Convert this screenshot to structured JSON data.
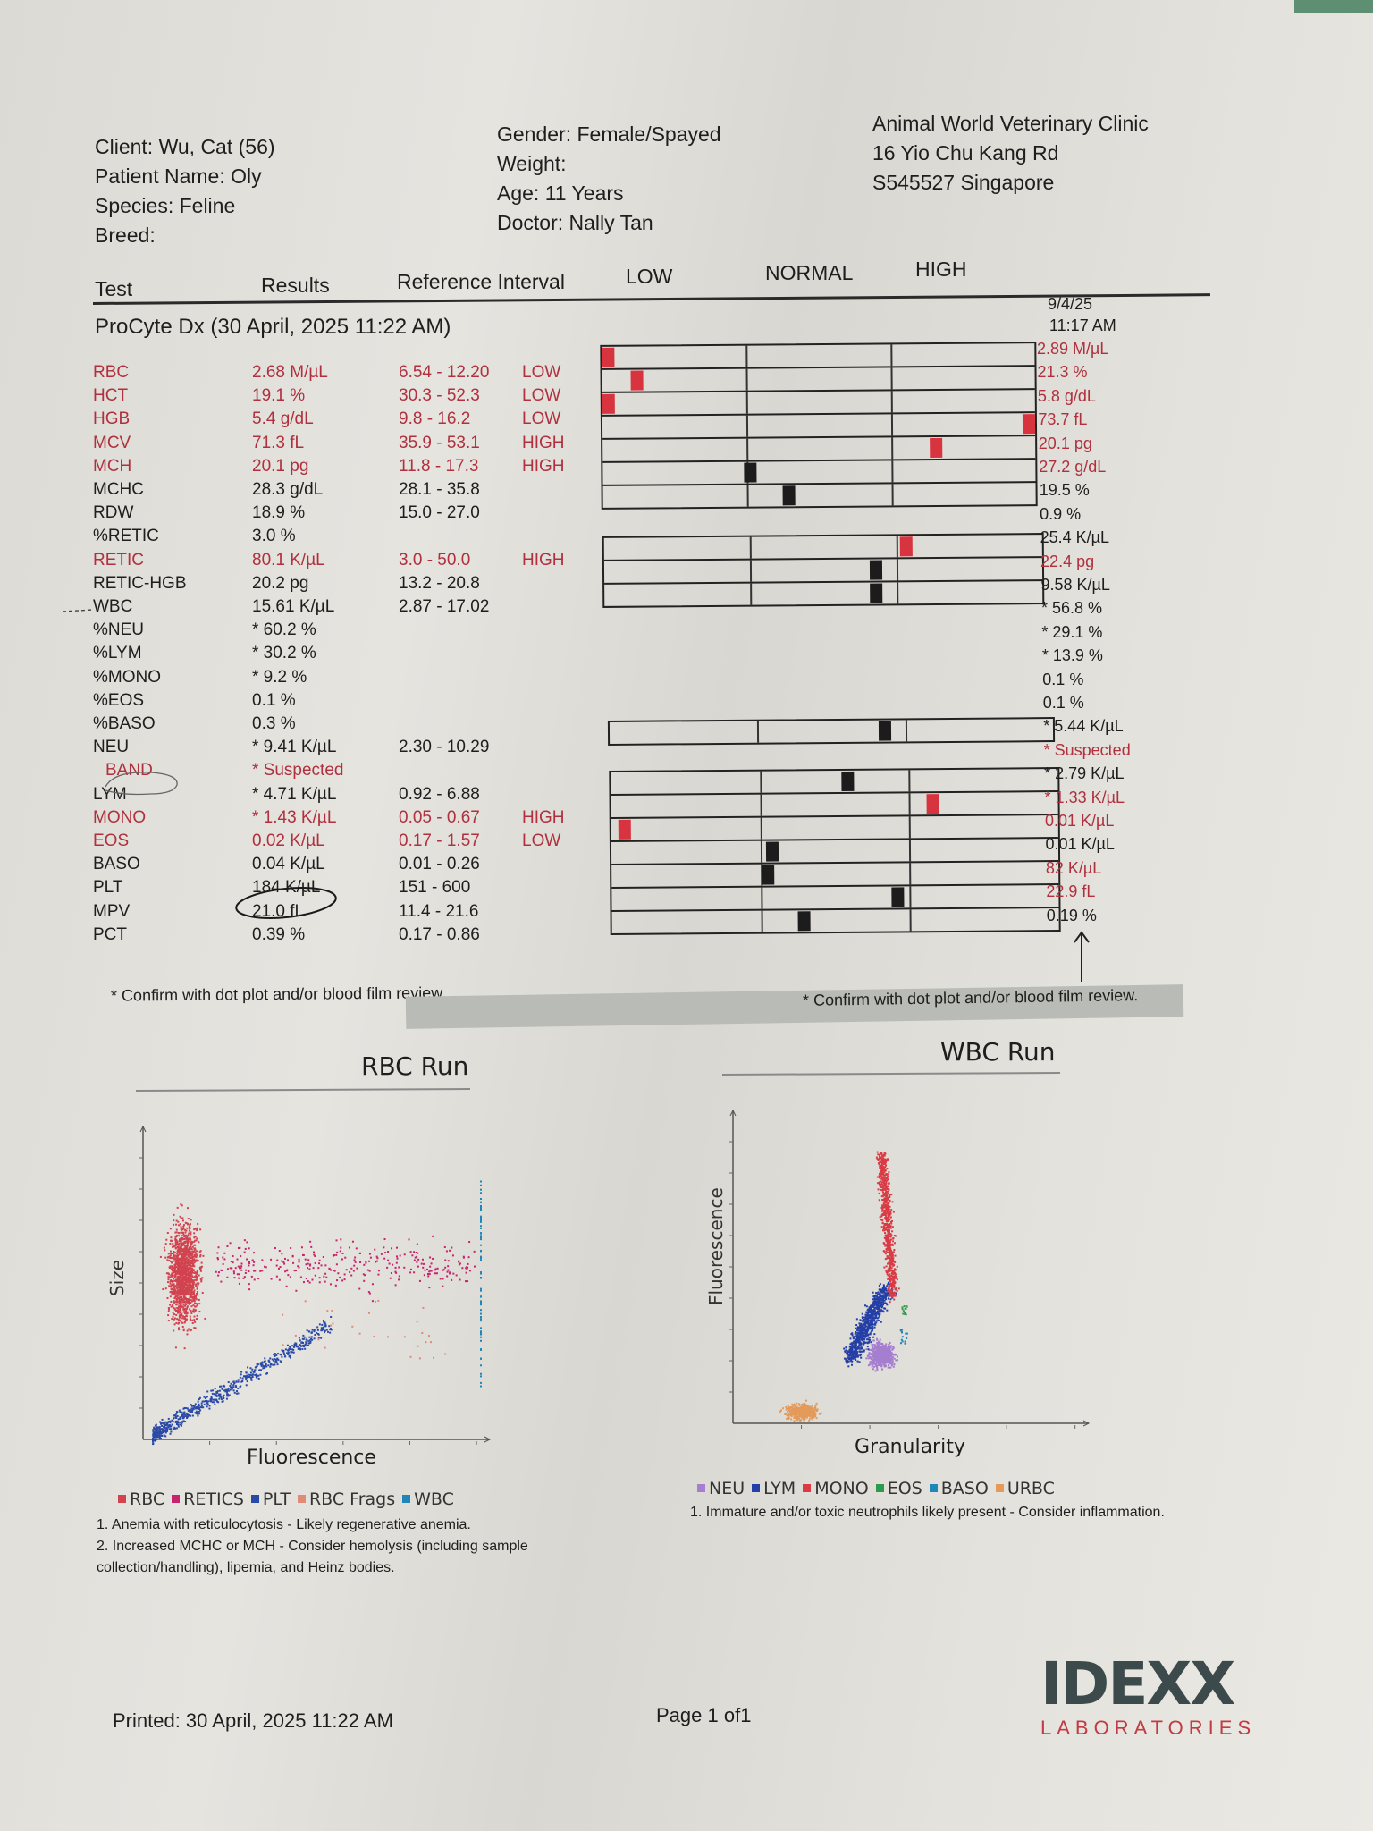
{
  "header": {
    "client": "Client: Wu, Cat (56)",
    "patient": "Patient Name: Oly",
    "species": "Species: Feline",
    "breed": "Breed:",
    "gender": "Gender: Female/Spayed",
    "weight": "Weight:",
    "age": "Age: 11 Years",
    "doctor": "Doctor: Nally Tan",
    "clinic_name": "Animal World Veterinary Clinic",
    "clinic_address1": "16 Yio Chu Kang Rd",
    "clinic_address2": "S545527 Singapore"
  },
  "columns": {
    "test": "Test",
    "results": "Results",
    "reference": "Reference Interval",
    "low": "LOW",
    "normal": "NORMAL",
    "high": "HIGH"
  },
  "section_title": "ProCyte Dx (30 April, 2025 11:22 AM)",
  "previous_run": {
    "date": "9/4/25",
    "time": "11:17 AM"
  },
  "tests": [
    {
      "test": "RBC",
      "result": "2.68 M/µL",
      "reference": "6.54 - 12.20",
      "flag": "LOW",
      "abnormal": true,
      "gauge_position": 0.01,
      "previous": "2.89 M/µL",
      "previous_abnormal": true
    },
    {
      "test": "HCT",
      "result": "19.1 %",
      "reference": "30.3 - 52.3",
      "flag": "LOW",
      "abnormal": true,
      "gauge_position": 0.08,
      "previous": "21.3 %",
      "previous_abnormal": true
    },
    {
      "test": "HGB",
      "result": "5.4 g/dL",
      "reference": "9.8 - 16.2",
      "flag": "LOW",
      "abnormal": true,
      "gauge_position": 0.02,
      "previous": "5.8 g/dL",
      "previous_abnormal": true
    },
    {
      "test": "MCV",
      "result": "71.3 fL",
      "reference": "35.9 - 53.1",
      "flag": "HIGH",
      "abnormal": true,
      "gauge_position": 0.99,
      "previous": "73.7 fL",
      "previous_abnormal": true
    },
    {
      "test": "MCH",
      "result": "20.1 pg",
      "reference": "11.8 - 17.3",
      "flag": "HIGH",
      "abnormal": true,
      "gauge_position": 0.77,
      "previous": "20.1 pg",
      "previous_abnormal": true
    },
    {
      "test": "MCHC",
      "result": "28.3 g/dL",
      "reference": "28.1 - 35.8",
      "flag": "",
      "abnormal": false,
      "gauge_position": 0.34,
      "previous": "27.2 g/dL",
      "previous_abnormal": true
    },
    {
      "test": "RDW",
      "result": "18.9 %",
      "reference": "15.0 - 27.0",
      "flag": "",
      "abnormal": false,
      "gauge_position": 0.43,
      "previous": "19.5 %",
      "previous_abnormal": false
    },
    {
      "test": "%RETIC",
      "result": "3.0 %",
      "reference": "",
      "flag": "",
      "abnormal": false,
      "gauge_position": null,
      "previous": "0.9 %",
      "previous_abnormal": false
    },
    {
      "test": "RETIC",
      "result": "80.1 K/µL",
      "reference": "3.0 - 50.0",
      "flag": "HIGH",
      "abnormal": true,
      "gauge_position": 0.69,
      "previous": "25.4 K/µL",
      "previous_abnormal": false
    },
    {
      "test": "RETIC-HGB",
      "result": "20.2 pg",
      "reference": "13.2 - 20.8",
      "flag": "",
      "abnormal": false,
      "gauge_position": 0.62,
      "previous": "22.4 pg",
      "previous_abnormal": true
    },
    {
      "test": "WBC",
      "result": "15.61 K/µL",
      "reference": "2.87 - 17.02",
      "flag": "",
      "abnormal": false,
      "gauge_position": 0.62,
      "previous": "9.58 K/µL",
      "previous_abnormal": false
    },
    {
      "test": "%NEU",
      "result": "* 60.2 %",
      "reference": "",
      "flag": "",
      "abnormal": false,
      "gauge_position": null,
      "previous": "* 56.8 %",
      "previous_abnormal": false
    },
    {
      "test": "%LYM",
      "result": "* 30.2 %",
      "reference": "",
      "flag": "",
      "abnormal": false,
      "gauge_position": null,
      "previous": "* 29.1 %",
      "previous_abnormal": false
    },
    {
      "test": "%MONO",
      "result": "* 9.2 %",
      "reference": "",
      "flag": "",
      "abnormal": false,
      "gauge_position": null,
      "previous": "* 13.9 %",
      "previous_abnormal": false
    },
    {
      "test": "%EOS",
      "result": "0.1 %",
      "reference": "",
      "flag": "",
      "abnormal": false,
      "gauge_position": null,
      "previous": "0.1 %",
      "previous_abnormal": false
    },
    {
      "test": "%BASO",
      "result": "0.3 %",
      "reference": "",
      "flag": "",
      "abnormal": false,
      "gauge_position": null,
      "previous": "0.1 %",
      "previous_abnormal": false
    },
    {
      "test": "NEU",
      "result": "* 9.41 K/µL",
      "reference": "2.30 - 10.29",
      "flag": "",
      "abnormal": false,
      "gauge_position": 0.62,
      "previous": "* 5.44 K/µL",
      "previous_abnormal": false
    },
    {
      "test": "BAND",
      "result": "* Suspected",
      "reference": "",
      "flag": "",
      "abnormal": true,
      "gauge_position": null,
      "previous": "* Suspected",
      "previous_abnormal": true
    },
    {
      "test": "LYM",
      "result": "* 4.71 K/µL",
      "reference": "0.92 - 6.88",
      "flag": "",
      "abnormal": false,
      "gauge_position": 0.53,
      "previous": "* 2.79 K/µL",
      "previous_abnormal": false
    },
    {
      "test": "MONO",
      "result": "* 1.43 K/µL",
      "reference": "0.05 - 0.67",
      "flag": "HIGH",
      "abnormal": true,
      "gauge_position": 0.72,
      "previous": "* 1.33 K/µL",
      "previous_abnormal": true
    },
    {
      "test": "EOS",
      "result": "0.02 K/µL",
      "reference": "0.17 - 1.57",
      "flag": "LOW",
      "abnormal": true,
      "gauge_position": 0.03,
      "previous": "0.01 K/µL",
      "previous_abnormal": true
    },
    {
      "test": "BASO",
      "result": "0.04 K/µL",
      "reference": "0.01 - 0.26",
      "flag": "",
      "abnormal": false,
      "gauge_position": 0.36,
      "previous": "0.01 K/µL",
      "previous_abnormal": false
    },
    {
      "test": "PLT",
      "result": "184 K/µL",
      "reference": "151 - 600",
      "flag": "",
      "abnormal": false,
      "gauge_position": 0.35,
      "previous": "82 K/µL",
      "previous_abnormal": true
    },
    {
      "test": "MPV",
      "result": "21.0 fL",
      "reference": "11.4 - 21.6",
      "flag": "",
      "abnormal": false,
      "gauge_position": 0.64,
      "previous": "22.9 fL",
      "previous_abnormal": true
    },
    {
      "test": "PCT",
      "result": "0.39 %",
      "reference": "0.17 - 0.86",
      "flag": "",
      "abnormal": false,
      "gauge_position": 0.43,
      "previous": "0.19 %",
      "previous_abnormal": false
    }
  ],
  "footnote_left": "* Confirm with dot plot and/or blood film review.",
  "footnote_right": "* Confirm with dot plot and/or blood film review.",
  "rbc_run": {
    "title": "RBC Run",
    "xlabel": "Fluorescence",
    "ylabel": "Size",
    "legend": [
      {
        "label": "RBC",
        "color": "#d2434f"
      },
      {
        "label": "RETICS",
        "color": "#c8246e"
      },
      {
        "label": "PLT",
        "color": "#2a4aa8"
      },
      {
        "label": "RBC Frags",
        "color": "#e08a78"
      },
      {
        "label": "WBC",
        "color": "#1f86b8"
      }
    ],
    "interpretation": [
      "1. Anemia with reticulocytosis - Likely regenerative anemia.",
      "2. Increased MCHC or MCH - Consider hemolysis (including sample collection/handling), lipemia, and Heinz bodies."
    ]
  },
  "wbc_run": {
    "title": "WBC Run",
    "xlabel": "Granularity",
    "ylabel": "Fluorescence",
    "legend": [
      {
        "label": "NEU",
        "color": "#a57ed0"
      },
      {
        "label": "LYM",
        "color": "#243fa6"
      },
      {
        "label": "MONO",
        "color": "#d93a44"
      },
      {
        "label": "EOS",
        "color": "#2f9a4a"
      },
      {
        "label": "BASO",
        "color": "#1f86b8"
      },
      {
        "label": "URBC",
        "color": "#e39a5a"
      }
    ],
    "interpretation": [
      "1. Immature and/or toxic neutrophils likely present - Consider inflammation."
    ]
  },
  "footer": {
    "printed": "Printed: 30 April, 2025 11:22 AM",
    "page": "Page 1 of1",
    "logo_word": "IDEXX",
    "logo_sub": "LABORATORIES"
  },
  "colors": {
    "abnormal": "#b0303e",
    "marker_abnormal": "#d8343f",
    "marker_normal": "#1c1c1c"
  }
}
